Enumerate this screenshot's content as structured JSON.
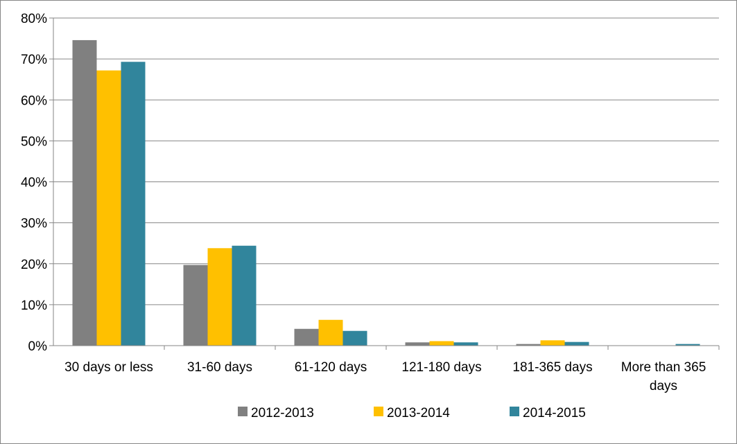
{
  "chart_data": {
    "type": "bar",
    "title": "",
    "xlabel": "",
    "ylabel": "",
    "ylim": [
      0,
      80
    ],
    "y_ticks": [
      0,
      10,
      20,
      30,
      40,
      50,
      60,
      70,
      80
    ],
    "y_tick_labels": [
      "0%",
      "10%",
      "20%",
      "30%",
      "40%",
      "50%",
      "60%",
      "70%",
      "80%"
    ],
    "grid": "horizontal",
    "legend_position": "bottom",
    "categories": [
      [
        "30 days or less"
      ],
      [
        "31-60 days"
      ],
      [
        "61-120 days"
      ],
      [
        "121-180 days"
      ],
      [
        "181-365 days"
      ],
      [
        "More than 365",
        "days"
      ]
    ],
    "series": [
      {
        "name": "2012-2013",
        "color": "#808080",
        "values": [
          74.6,
          19.7,
          4.1,
          0.8,
          0.4,
          0.0
        ]
      },
      {
        "name": "2013-2014",
        "color": "#FFC000",
        "values": [
          67.2,
          23.8,
          6.3,
          1.1,
          1.3,
          0.0
        ]
      },
      {
        "name": "2014-2015",
        "color": "#31859C",
        "values": [
          69.3,
          24.4,
          3.6,
          0.8,
          0.9,
          0.4
        ]
      }
    ]
  }
}
